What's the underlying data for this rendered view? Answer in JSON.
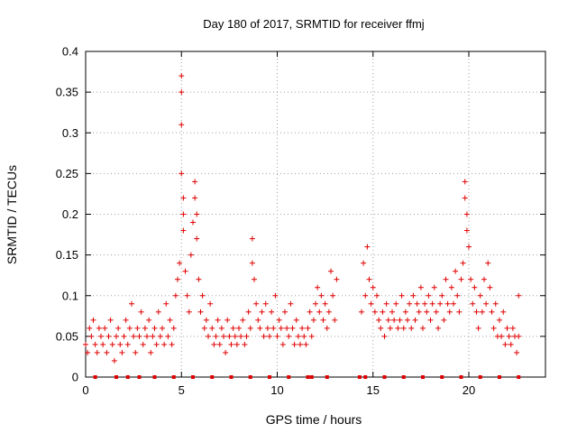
{
  "chart_data": {
    "type": "scatter",
    "title": "Day 180 of 2017, SRMTID for receiver ffmj",
    "xlabel": "GPS time / hours",
    "ylabel": "SRMTID / TECUs",
    "xlim": [
      0,
      24
    ],
    "ylim": [
      0,
      0.4
    ],
    "xticks": [
      0,
      5,
      10,
      15,
      20
    ],
    "xtick_labels": [
      "0",
      "5",
      "10",
      "15",
      "20"
    ],
    "yticks": [
      0,
      0.05,
      0.1,
      0.15,
      0.2,
      0.25,
      0.3,
      0.35,
      0.4
    ],
    "ytick_labels": [
      "0",
      "0.05",
      "0.1",
      "0.15",
      "0.2",
      "0.25",
      "0.3",
      "0.35",
      "0.4"
    ],
    "grid": true,
    "marker": "+",
    "color": "#e00000",
    "series": [
      {
        "name": "SRMTID",
        "points": [
          [
            0.0,
            0.04
          ],
          [
            0.1,
            0.03
          ],
          [
            0.2,
            0.06
          ],
          [
            0.3,
            0.05
          ],
          [
            0.4,
            0.07
          ],
          [
            0.5,
            0.04
          ],
          [
            0.6,
            0.03
          ],
          [
            0.7,
            0.06
          ],
          [
            0.8,
            0.05
          ],
          [
            0.9,
            0.04
          ],
          [
            1.0,
            0.06
          ],
          [
            1.1,
            0.03
          ],
          [
            1.2,
            0.05
          ],
          [
            1.3,
            0.07
          ],
          [
            1.4,
            0.04
          ],
          [
            1.5,
            0.02
          ],
          [
            1.6,
            0.05
          ],
          [
            1.7,
            0.06
          ],
          [
            1.8,
            0.04
          ],
          [
            1.9,
            0.03
          ],
          [
            2.0,
            0.05
          ],
          [
            2.1,
            0.07
          ],
          [
            2.2,
            0.04
          ],
          [
            2.3,
            0.06
          ],
          [
            2.4,
            0.09
          ],
          [
            2.5,
            0.05
          ],
          [
            2.6,
            0.03
          ],
          [
            2.7,
            0.06
          ],
          [
            2.8,
            0.05
          ],
          [
            2.9,
            0.08
          ],
          [
            3.0,
            0.04
          ],
          [
            3.1,
            0.06
          ],
          [
            3.2,
            0.05
          ],
          [
            3.3,
            0.07
          ],
          [
            3.4,
            0.03
          ],
          [
            3.5,
            0.05
          ],
          [
            3.6,
            0.06
          ],
          [
            3.7,
            0.04
          ],
          [
            3.8,
            0.08
          ],
          [
            3.9,
            0.05
          ],
          [
            4.0,
            0.06
          ],
          [
            4.1,
            0.04
          ],
          [
            4.2,
            0.09
          ],
          [
            4.3,
            0.05
          ],
          [
            4.4,
            0.07
          ],
          [
            4.5,
            0.04
          ],
          [
            4.6,
            0.06
          ],
          [
            4.7,
            0.1
          ],
          [
            4.8,
            0.12
          ],
          [
            4.9,
            0.14
          ],
          [
            5.0,
            0.37
          ],
          [
            5.0,
            0.35
          ],
          [
            5.0,
            0.31
          ],
          [
            5.0,
            0.25
          ],
          [
            5.1,
            0.22
          ],
          [
            5.1,
            0.2
          ],
          [
            5.1,
            0.18
          ],
          [
            5.2,
            0.13
          ],
          [
            5.3,
            0.1
          ],
          [
            5.4,
            0.08
          ],
          [
            5.5,
            0.15
          ],
          [
            5.6,
            0.19
          ],
          [
            5.7,
            0.24
          ],
          [
            5.7,
            0.22
          ],
          [
            5.8,
            0.2
          ],
          [
            5.8,
            0.17
          ],
          [
            5.9,
            0.12
          ],
          [
            6.0,
            0.08
          ],
          [
            6.1,
            0.1
          ],
          [
            6.2,
            0.06
          ],
          [
            6.3,
            0.07
          ],
          [
            6.4,
            0.05
          ],
          [
            6.5,
            0.09
          ],
          [
            6.6,
            0.06
          ],
          [
            6.7,
            0.04
          ],
          [
            6.8,
            0.05
          ],
          [
            6.9,
            0.07
          ],
          [
            7.0,
            0.04
          ],
          [
            7.1,
            0.06
          ],
          [
            7.2,
            0.05
          ],
          [
            7.3,
            0.03
          ],
          [
            7.4,
            0.07
          ],
          [
            7.5,
            0.05
          ],
          [
            7.6,
            0.04
          ],
          [
            7.7,
            0.06
          ],
          [
            7.8,
            0.05
          ],
          [
            7.9,
            0.04
          ],
          [
            8.0,
            0.06
          ],
          [
            8.1,
            0.05
          ],
          [
            8.2,
            0.07
          ],
          [
            8.3,
            0.04
          ],
          [
            8.4,
            0.05
          ],
          [
            8.5,
            0.08
          ],
          [
            8.6,
            0.06
          ],
          [
            8.7,
            0.14
          ],
          [
            8.7,
            0.17
          ],
          [
            8.8,
            0.12
          ],
          [
            8.9,
            0.09
          ],
          [
            9.0,
            0.07
          ],
          [
            9.1,
            0.06
          ],
          [
            9.2,
            0.08
          ],
          [
            9.3,
            0.05
          ],
          [
            9.4,
            0.09
          ],
          [
            9.5,
            0.06
          ],
          [
            9.6,
            0.05
          ],
          [
            9.7,
            0.08
          ],
          [
            9.8,
            0.06
          ],
          [
            9.9,
            0.1
          ],
          [
            10.0,
            0.05
          ],
          [
            10.1,
            0.07
          ],
          [
            10.2,
            0.06
          ],
          [
            10.3,
            0.04
          ],
          [
            10.4,
            0.08
          ],
          [
            10.5,
            0.06
          ],
          [
            10.6,
            0.05
          ],
          [
            10.7,
            0.09
          ],
          [
            10.8,
            0.06
          ],
          [
            10.9,
            0.04
          ],
          [
            11.0,
            0.07
          ],
          [
            11.1,
            0.05
          ],
          [
            11.2,
            0.04
          ],
          [
            11.3,
            0.06
          ],
          [
            11.4,
            0.05
          ],
          [
            11.5,
            0.04
          ],
          [
            11.6,
            0.06
          ],
          [
            11.7,
            0.08
          ],
          [
            11.8,
            0.05
          ],
          [
            11.9,
            0.07
          ],
          [
            12.0,
            0.09
          ],
          [
            12.1,
            0.11
          ],
          [
            12.2,
            0.08
          ],
          [
            12.3,
            0.1
          ],
          [
            12.4,
            0.07
          ],
          [
            12.5,
            0.09
          ],
          [
            12.6,
            0.06
          ],
          [
            12.7,
            0.08
          ],
          [
            12.8,
            0.13
          ],
          [
            12.9,
            0.1
          ],
          [
            13.0,
            0.07
          ],
          [
            13.1,
            0.12
          ],
          [
            14.4,
            0.08
          ],
          [
            14.5,
            0.14
          ],
          [
            14.6,
            0.1
          ],
          [
            14.7,
            0.16
          ],
          [
            14.8,
            0.12
          ],
          [
            14.9,
            0.09
          ],
          [
            15.0,
            0.11
          ],
          [
            15.1,
            0.08
          ],
          [
            15.2,
            0.1
          ],
          [
            15.3,
            0.07
          ],
          [
            15.4,
            0.06
          ],
          [
            15.5,
            0.08
          ],
          [
            15.6,
            0.05
          ],
          [
            15.7,
            0.09
          ],
          [
            15.8,
            0.07
          ],
          [
            15.9,
            0.06
          ],
          [
            16.0,
            0.08
          ],
          [
            16.1,
            0.07
          ],
          [
            16.2,
            0.09
          ],
          [
            16.3,
            0.06
          ],
          [
            16.4,
            0.07
          ],
          [
            16.5,
            0.1
          ],
          [
            16.6,
            0.06
          ],
          [
            16.7,
            0.08
          ],
          [
            16.8,
            0.07
          ],
          [
            16.9,
            0.09
          ],
          [
            17.0,
            0.06
          ],
          [
            17.1,
            0.1
          ],
          [
            17.2,
            0.07
          ],
          [
            17.3,
            0.09
          ],
          [
            17.4,
            0.08
          ],
          [
            17.5,
            0.11
          ],
          [
            17.6,
            0.06
          ],
          [
            17.7,
            0.09
          ],
          [
            17.8,
            0.08
          ],
          [
            17.9,
            0.1
          ],
          [
            18.0,
            0.07
          ],
          [
            18.1,
            0.09
          ],
          [
            18.2,
            0.11
          ],
          [
            18.3,
            0.08
          ],
          [
            18.4,
            0.06
          ],
          [
            18.5,
            0.09
          ],
          [
            18.6,
            0.1
          ],
          [
            18.7,
            0.07
          ],
          [
            18.8,
            0.12
          ],
          [
            18.9,
            0.09
          ],
          [
            19.0,
            0.08
          ],
          [
            19.1,
            0.11
          ],
          [
            19.2,
            0.09
          ],
          [
            19.3,
            0.13
          ],
          [
            19.4,
            0.1
          ],
          [
            19.5,
            0.08
          ],
          [
            19.6,
            0.12
          ],
          [
            19.7,
            0.14
          ],
          [
            19.8,
            0.24
          ],
          [
            19.8,
            0.22
          ],
          [
            19.9,
            0.2
          ],
          [
            19.9,
            0.18
          ],
          [
            20.0,
            0.16
          ],
          [
            20.1,
            0.12
          ],
          [
            20.2,
            0.09
          ],
          [
            20.3,
            0.11
          ],
          [
            20.4,
            0.08
          ],
          [
            20.5,
            0.06
          ],
          [
            20.6,
            0.1
          ],
          [
            20.7,
            0.08
          ],
          [
            20.8,
            0.12
          ],
          [
            20.9,
            0.09
          ],
          [
            21.0,
            0.14
          ],
          [
            21.1,
            0.11
          ],
          [
            21.2,
            0.08
          ],
          [
            21.3,
            0.06
          ],
          [
            21.4,
            0.09
          ],
          [
            21.5,
            0.05
          ],
          [
            21.6,
            0.07
          ],
          [
            21.7,
            0.05
          ],
          [
            21.8,
            0.08
          ],
          [
            21.9,
            0.04
          ],
          [
            22.0,
            0.06
          ],
          [
            22.1,
            0.05
          ],
          [
            22.2,
            0.04
          ],
          [
            22.3,
            0.06
          ],
          [
            22.4,
            0.05
          ],
          [
            22.5,
            0.03
          ],
          [
            22.6,
            0.05
          ],
          [
            22.6,
            0.1
          ]
        ]
      }
    ],
    "baseline_markers": [
      0.5,
      1.6,
      2.2,
      2.8,
      3.6,
      4.6,
      5.6,
      6.6,
      7.6,
      8.6,
      9.6,
      10.6,
      11.6,
      11.8,
      12.6,
      14.3,
      14.6,
      15.6,
      16.6,
      17.6,
      18.6,
      19.6,
      20.6,
      21.6,
      22.6
    ]
  }
}
